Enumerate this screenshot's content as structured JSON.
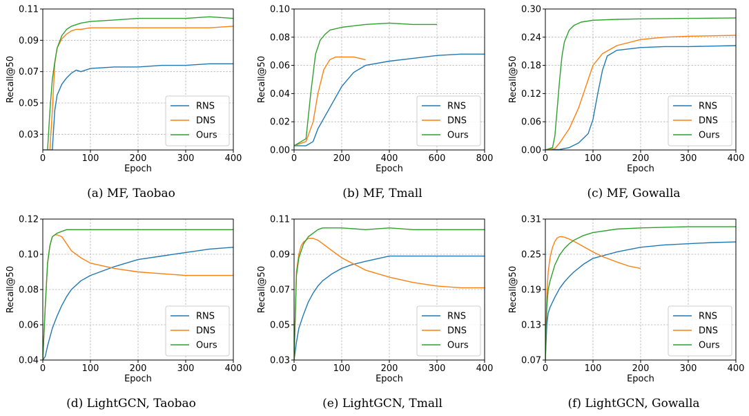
{
  "figure": {
    "colors": {
      "RNS": "#1f77b4",
      "DNS": "#ff7f0e",
      "Ours": "#2ca02c"
    }
  },
  "chart_data": [
    {
      "type": "line",
      "caption": "(a) MF, Taobao",
      "xlabel": "Epoch",
      "ylabel": "Recall@50",
      "xlim": [
        0,
        400
      ],
      "ylim": [
        0.02,
        0.11
      ],
      "xticks": [
        0,
        100,
        200,
        300,
        400
      ],
      "yticks": [
        0.03,
        0.05,
        0.07,
        0.09,
        0.11
      ],
      "grid": true,
      "legend": "lower-right",
      "series": [
        {
          "name": "RNS",
          "x": [
            0,
            20,
            25,
            30,
            40,
            50,
            60,
            70,
            80,
            100,
            150,
            200,
            250,
            300,
            350,
            400
          ],
          "y": [
            0.02,
            0.02,
            0.045,
            0.055,
            0.062,
            0.066,
            0.069,
            0.071,
            0.07,
            0.072,
            0.073,
            0.073,
            0.074,
            0.074,
            0.075,
            0.075
          ]
        },
        {
          "name": "DNS",
          "x": [
            15,
            20,
            25,
            30,
            40,
            50,
            60,
            70,
            80,
            100,
            150,
            200,
            250,
            300,
            350,
            400
          ],
          "y": [
            0.02,
            0.045,
            0.075,
            0.085,
            0.091,
            0.094,
            0.096,
            0.097,
            0.097,
            0.098,
            0.098,
            0.098,
            0.098,
            0.098,
            0.098,
            0.099
          ]
        },
        {
          "name": "Ours",
          "x": [
            10,
            15,
            20,
            25,
            30,
            40,
            50,
            60,
            70,
            80,
            100,
            150,
            200,
            250,
            300,
            350,
            400
          ],
          "y": [
            0.02,
            0.045,
            0.065,
            0.076,
            0.085,
            0.093,
            0.097,
            0.099,
            0.1,
            0.101,
            0.102,
            0.103,
            0.104,
            0.104,
            0.104,
            0.105,
            0.104
          ]
        }
      ]
    },
    {
      "type": "line",
      "caption": "(b) MF, Tmall",
      "xlabel": "Epoch",
      "ylabel": "Recall@50",
      "xlim": [
        0,
        800
      ],
      "ylim": [
        0.0,
        0.1
      ],
      "xticks": [
        0,
        200,
        400,
        600,
        800
      ],
      "yticks": [
        0.0,
        0.02,
        0.04,
        0.06,
        0.08,
        0.1
      ],
      "grid": true,
      "legend": "lower-right",
      "series": [
        {
          "name": "RNS",
          "x": [
            0,
            50,
            80,
            100,
            150,
            200,
            250,
            300,
            400,
            500,
            600,
            700,
            800
          ],
          "y": [
            0.003,
            0.003,
            0.006,
            0.015,
            0.03,
            0.045,
            0.055,
            0.06,
            0.063,
            0.065,
            0.067,
            0.068,
            0.068
          ]
        },
        {
          "name": "DNS",
          "x": [
            0,
            50,
            80,
            100,
            125,
            150,
            175,
            200,
            250,
            300
          ],
          "y": [
            0.003,
            0.006,
            0.02,
            0.04,
            0.057,
            0.064,
            0.066,
            0.066,
            0.066,
            0.064
          ]
        },
        {
          "name": "Ours",
          "x": [
            0,
            50,
            70,
            90,
            110,
            130,
            150,
            200,
            300,
            400,
            500,
            600
          ],
          "y": [
            0.003,
            0.008,
            0.04,
            0.068,
            0.078,
            0.082,
            0.085,
            0.087,
            0.089,
            0.09,
            0.089,
            0.089
          ]
        }
      ]
    },
    {
      "type": "line",
      "caption": "(c) MF, Gowalla",
      "xlabel": "Epoch",
      "ylabel": "Recall@50",
      "xlim": [
        0,
        400
      ],
      "ylim": [
        0.0,
        0.3
      ],
      "xticks": [
        0,
        100,
        200,
        300,
        400
      ],
      "yticks": [
        0.0,
        0.06,
        0.12,
        0.18,
        0.24,
        0.3
      ],
      "grid": true,
      "legend": "lower-right",
      "series": [
        {
          "name": "RNS",
          "x": [
            0,
            30,
            50,
            70,
            90,
            100,
            110,
            120,
            130,
            150,
            200,
            250,
            300,
            400
          ],
          "y": [
            0.0,
            0.001,
            0.005,
            0.015,
            0.035,
            0.065,
            0.12,
            0.17,
            0.2,
            0.212,
            0.218,
            0.22,
            0.22,
            0.222
          ]
        },
        {
          "name": "DNS",
          "x": [
            0,
            20,
            30,
            50,
            70,
            90,
            100,
            120,
            150,
            200,
            250,
            300,
            400
          ],
          "y": [
            0.0,
            0.003,
            0.015,
            0.045,
            0.09,
            0.15,
            0.18,
            0.205,
            0.222,
            0.235,
            0.24,
            0.242,
            0.244
          ]
        },
        {
          "name": "Ours",
          "x": [
            0,
            15,
            20,
            25,
            30,
            35,
            40,
            50,
            60,
            75,
            100,
            150,
            200,
            300,
            400
          ],
          "y": [
            0.0,
            0.005,
            0.03,
            0.09,
            0.15,
            0.2,
            0.23,
            0.255,
            0.265,
            0.272,
            0.276,
            0.278,
            0.279,
            0.28,
            0.281
          ]
        }
      ]
    },
    {
      "type": "line",
      "caption": "(d) LightGCN, Taobao",
      "xlabel": "Epoch",
      "ylabel": "Recall@50",
      "xlim": [
        0,
        400
      ],
      "ylim": [
        0.04,
        0.12
      ],
      "xticks": [
        0,
        100,
        200,
        300,
        400
      ],
      "yticks": [
        0.04,
        0.06,
        0.08,
        0.1,
        0.12
      ],
      "grid": true,
      "legend": "lower-right",
      "series": [
        {
          "name": "RNS",
          "x": [
            0,
            5,
            10,
            20,
            30,
            40,
            50,
            60,
            80,
            100,
            150,
            200,
            250,
            300,
            350,
            400
          ],
          "y": [
            0.04,
            0.042,
            0.048,
            0.058,
            0.065,
            0.071,
            0.076,
            0.08,
            0.085,
            0.088,
            0.093,
            0.097,
            0.099,
            0.101,
            0.103,
            0.104
          ]
        },
        {
          "name": "DNS",
          "x": [
            0,
            5,
            10,
            15,
            20,
            25,
            30,
            40,
            50,
            60,
            80,
            100,
            150,
            200,
            250,
            300,
            350,
            400
          ],
          "y": [
            0.04,
            0.07,
            0.095,
            0.105,
            0.11,
            0.111,
            0.111,
            0.11,
            0.106,
            0.102,
            0.098,
            0.095,
            0.092,
            0.09,
            0.089,
            0.088,
            0.088,
            0.088
          ]
        },
        {
          "name": "Ours",
          "x": [
            0,
            5,
            10,
            15,
            20,
            25,
            30,
            40,
            50,
            60,
            80,
            100,
            150,
            200,
            250,
            300,
            350,
            400
          ],
          "y": [
            0.04,
            0.07,
            0.095,
            0.105,
            0.11,
            0.111,
            0.112,
            0.113,
            0.114,
            0.114,
            0.114,
            0.114,
            0.114,
            0.114,
            0.114,
            0.114,
            0.114,
            0.114
          ]
        }
      ]
    },
    {
      "type": "line",
      "caption": "(e) LightGCN, Tmall",
      "xlabel": "Epoch",
      "ylabel": "Recall@50",
      "xlim": [
        0,
        400
      ],
      "ylim": [
        0.03,
        0.11
      ],
      "xticks": [
        0,
        100,
        200,
        300,
        400
      ],
      "yticks": [
        0.03,
        0.05,
        0.07,
        0.09,
        0.11
      ],
      "grid": true,
      "legend": "lower-right",
      "series": [
        {
          "name": "RNS",
          "x": [
            0,
            5,
            10,
            20,
            30,
            40,
            50,
            60,
            80,
            100,
            120,
            150,
            200,
            250,
            300,
            350,
            400
          ],
          "y": [
            0.03,
            0.04,
            0.048,
            0.056,
            0.063,
            0.068,
            0.072,
            0.075,
            0.079,
            0.082,
            0.084,
            0.086,
            0.089,
            0.089,
            0.089,
            0.089,
            0.089
          ]
        },
        {
          "name": "DNS",
          "x": [
            0,
            5,
            10,
            15,
            20,
            25,
            30,
            40,
            50,
            60,
            80,
            100,
            150,
            200,
            250,
            300,
            350,
            400
          ],
          "y": [
            0.03,
            0.08,
            0.09,
            0.095,
            0.097,
            0.098,
            0.099,
            0.099,
            0.098,
            0.096,
            0.092,
            0.088,
            0.081,
            0.077,
            0.074,
            0.072,
            0.071,
            0.071
          ]
        },
        {
          "name": "Ours",
          "x": [
            0,
            5,
            10,
            20,
            30,
            40,
            50,
            60,
            80,
            100,
            150,
            200,
            250,
            300,
            350,
            400
          ],
          "y": [
            0.03,
            0.078,
            0.088,
            0.096,
            0.1,
            0.102,
            0.104,
            0.105,
            0.105,
            0.105,
            0.104,
            0.105,
            0.104,
            0.104,
            0.104,
            0.104
          ]
        }
      ]
    },
    {
      "type": "line",
      "caption": "(f) LightGCN, Gowalla",
      "xlabel": "Epoch",
      "ylabel": "Recall@50",
      "xlim": [
        0,
        400
      ],
      "ylim": [
        0.07,
        0.31
      ],
      "xticks": [
        0,
        100,
        200,
        300,
        400
      ],
      "yticks": [
        0.07,
        0.13,
        0.19,
        0.25,
        0.31
      ],
      "grid": true,
      "legend": "lower-right",
      "series": [
        {
          "name": "RNS",
          "x": [
            0,
            3,
            6,
            10,
            20,
            30,
            40,
            50,
            60,
            80,
            100,
            150,
            200,
            250,
            300,
            350,
            400
          ],
          "y": [
            0.07,
            0.13,
            0.15,
            0.16,
            0.177,
            0.192,
            0.203,
            0.212,
            0.22,
            0.233,
            0.243,
            0.254,
            0.262,
            0.266,
            0.268,
            0.27,
            0.271
          ]
        },
        {
          "name": "DNS",
          "x": [
            0,
            3,
            6,
            10,
            15,
            20,
            25,
            30,
            35,
            40,
            50,
            60,
            80,
            100,
            120,
            150,
            175,
            200
          ],
          "y": [
            0.07,
            0.18,
            0.22,
            0.245,
            0.262,
            0.272,
            0.278,
            0.28,
            0.28,
            0.279,
            0.276,
            0.272,
            0.263,
            0.254,
            0.246,
            0.237,
            0.23,
            0.226
          ]
        },
        {
          "name": "Ours",
          "x": [
            0,
            3,
            6,
            10,
            20,
            30,
            40,
            50,
            60,
            80,
            100,
            150,
            200,
            250,
            300,
            350,
            400
          ],
          "y": [
            0.07,
            0.16,
            0.19,
            0.205,
            0.232,
            0.249,
            0.26,
            0.268,
            0.274,
            0.282,
            0.287,
            0.293,
            0.295,
            0.296,
            0.297,
            0.297,
            0.297
          ]
        }
      ]
    }
  ]
}
